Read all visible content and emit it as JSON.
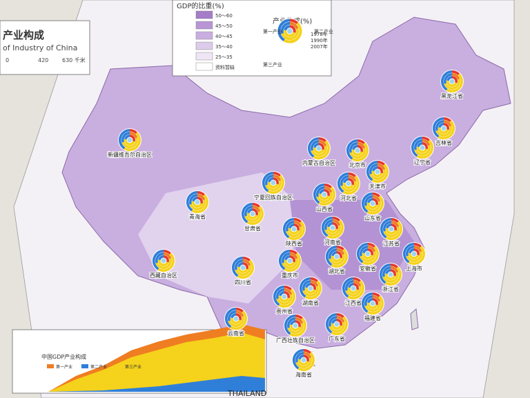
{
  "header": {
    "title": "产业构成",
    "subtitle": "of Industry of China",
    "scale": [
      "0",
      "420",
      "630 千米"
    ]
  },
  "legend": {
    "gdp_title": "GDP的比重(%)",
    "gdp_classes": [
      "50～60",
      "45～50",
      "40～45",
      "35～40",
      "25～35",
      "资料暂缺"
    ],
    "industry_title": "产业构成(%)",
    "sectors": [
      "第一产业",
      "第二产业",
      "第三产业"
    ],
    "years": [
      "1978年",
      "1990年",
      "2007年"
    ]
  },
  "provinces": [
    "黑龙江省",
    "吉林省",
    "辽宁省",
    "新疆维吾尔自治区",
    "内蒙古自治区",
    "北京市",
    "天津市",
    "河北省",
    "山西省",
    "宁夏回族自治区",
    "青海省",
    "甘肃省",
    "山东省",
    "陕西省",
    "河南省",
    "江苏省",
    "上海市",
    "安徽省",
    "湖北省",
    "重庆市",
    "四川省",
    "西藏自治区",
    "浙江省",
    "湖南省",
    "江西省",
    "贵州省",
    "福建省",
    "云南省",
    "广西壮族自治区",
    "广东省",
    "海南省"
  ],
  "map_labels": [
    "THAILAND"
  ],
  "inset": {
    "title": "中国GDP产业构成",
    "legend": [
      "第一产业",
      "第二产业",
      "第三产业"
    ]
  }
}
